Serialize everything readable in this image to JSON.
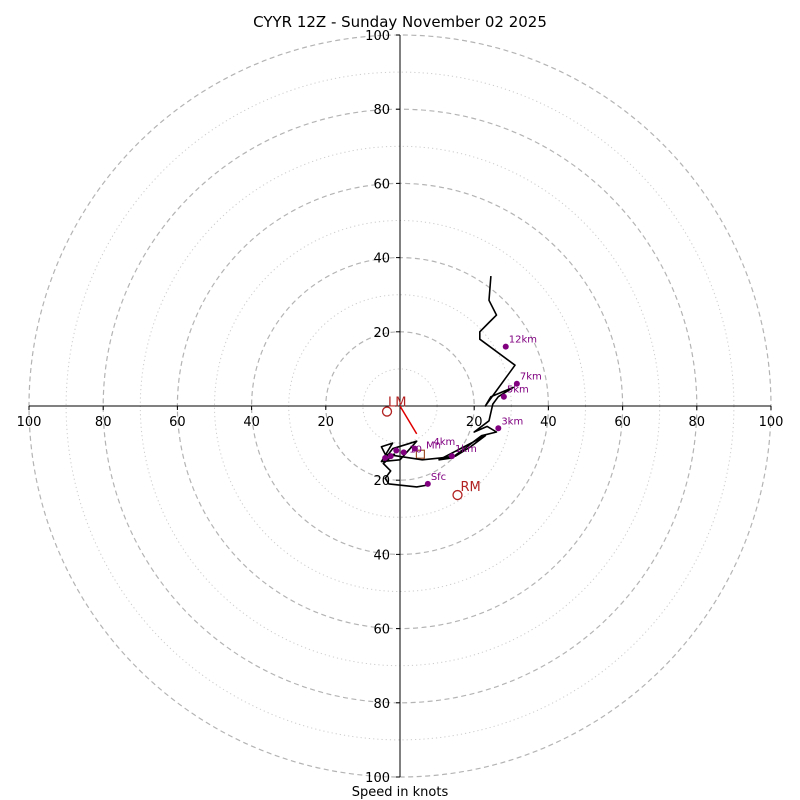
{
  "chart_data": {
    "type": "hodograph",
    "title": "CYYR 12Z - Sunday November 02 2025",
    "xlabel": "Speed in knots",
    "units": "knots",
    "axis_range": [
      -100,
      100
    ],
    "x_tick_labels": [
      "100",
      "80",
      "60",
      "40",
      "20",
      "20",
      "40",
      "60",
      "80",
      "100"
    ],
    "x_tick_values": [
      -100,
      -80,
      -60,
      -40,
      -20,
      20,
      40,
      60,
      80,
      100
    ],
    "y_tick_labels": [
      "100",
      "80",
      "60",
      "40",
      "20",
      "20",
      "40",
      "60",
      "80",
      "100"
    ],
    "y_tick_values": [
      100,
      80,
      60,
      40,
      20,
      -20,
      -40,
      -60,
      -80,
      -100
    ],
    "dashed_rings": [
      20,
      40,
      60,
      80,
      100
    ],
    "dotted_rings": [
      10,
      30,
      50,
      70,
      90
    ],
    "hodograph_trace": [
      [
        7.5,
        -21.3
      ],
      [
        4.5,
        -21.8
      ],
      [
        -3,
        -21.0
      ],
      [
        -4,
        -19.5
      ],
      [
        -2.5,
        -17.5
      ],
      [
        -4.5,
        -15.5
      ],
      [
        -1.5,
        -13.0
      ],
      [
        -3.5,
        -13.5
      ],
      [
        -2,
        -11.5
      ],
      [
        4.5,
        -9.5
      ],
      [
        0,
        -14.5
      ],
      [
        -5,
        -15.0
      ],
      [
        -2,
        -10.0
      ],
      [
        -5,
        -11.0
      ],
      [
        -4,
        -13.0
      ],
      [
        6,
        -14.5
      ],
      [
        11,
        -14.0
      ],
      [
        15,
        -13.5
      ],
      [
        19,
        -11.0
      ],
      [
        23,
        -8.0
      ],
      [
        10.5,
        -14.5
      ],
      [
        14,
        -14.0
      ],
      [
        18,
        -11.0
      ],
      [
        22,
        -8.0
      ],
      [
        26,
        -7.0
      ],
      [
        23.5,
        -5.5
      ],
      [
        20,
        -7.0
      ],
      [
        24,
        -4.0
      ],
      [
        25,
        0.5
      ],
      [
        26.5,
        2.5
      ],
      [
        30.5,
        5.0
      ],
      [
        24.5,
        2.5
      ],
      [
        23,
        0
      ],
      [
        31,
        11.0
      ],
      [
        21.5,
        18.0
      ],
      [
        21.5,
        20.0
      ],
      [
        24,
        22.5
      ],
      [
        26,
        24.5
      ],
      [
        24,
        28.5
      ],
      [
        24.5,
        35.0
      ]
    ],
    "height_markers": [
      {
        "label": "Sfc",
        "u": 7.5,
        "v": -21.0
      },
      {
        "label": "1km",
        "u": 14,
        "v": -13.5
      },
      {
        "label": "3km",
        "u": 26.5,
        "v": -6.0
      },
      {
        "label": "5km",
        "u": 28,
        "v": 2.5
      },
      {
        "label": "7km",
        "u": 31.5,
        "v": 6.0
      },
      {
        "label": "12km",
        "u": 28.5,
        "v": 16.0
      },
      {
        "label": "",
        "u": 4,
        "v": -11.5
      },
      {
        "label": "",
        "u": 1,
        "v": -12.5
      },
      {
        "label": "",
        "u": -1,
        "v": -12.0
      },
      {
        "label": "",
        "u": -2.5,
        "v": -13.5
      },
      {
        "label": "",
        "u": -4,
        "v": -14.0
      }
    ],
    "cluster_labels": [
      {
        "text": "4km",
        "u": 9,
        "v": -10.5
      },
      {
        "text": "Mn",
        "u": 7,
        "v": -11.5
      },
      {
        "text": "10",
        "u": 2.5,
        "v": -12.5
      }
    ],
    "lm": {
      "label": "LM",
      "u": -3.5,
      "v": -1.5
    },
    "rm": {
      "label": "RM",
      "u": 15.5,
      "v": -24.0
    },
    "mean_wind": {
      "u": 5.5,
      "v": -13.0
    },
    "shear_vector": {
      "from": [
        0,
        0
      ],
      "to": [
        4.5,
        -7.5
      ]
    },
    "colors": {
      "trace": "#000000",
      "markers": "#800080",
      "motion": "#b22222",
      "shear": "#e00000",
      "grid": "#b4b4b4",
      "axes": "#000000"
    }
  }
}
